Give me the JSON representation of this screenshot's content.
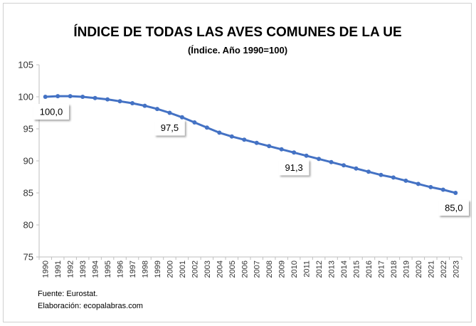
{
  "chart_data": {
    "type": "line",
    "title": "ÍNDICE DE TODAS LAS AVES COMUNES DE LA UE",
    "subtitle": "(Índice. Año 1990=100)",
    "xlabel": "",
    "ylabel": "",
    "ylim": [
      75,
      105
    ],
    "yticks": [
      "75",
      "80",
      "85",
      "90",
      "95",
      "100",
      "105"
    ],
    "grid": false,
    "legend": "none",
    "line_color": "#4472C4",
    "x": [
      "1990",
      "1991",
      "1992",
      "1993",
      "1994",
      "1995",
      "1996",
      "1997",
      "1998",
      "1999",
      "2000",
      "2001",
      "2002",
      "2003",
      "2004",
      "2005",
      "2006",
      "2007",
      "2008",
      "2009",
      "2010",
      "2011",
      "2012",
      "2013",
      "2014",
      "2015",
      "2016",
      "2017",
      "2018",
      "2019",
      "2020",
      "2021",
      "2022",
      "2023"
    ],
    "series": [
      {
        "values": [
          100.0,
          100.1,
          100.1,
          100.0,
          99.8,
          99.6,
          99.3,
          99.0,
          98.6,
          98.1,
          97.5,
          96.8,
          96.0,
          95.2,
          94.4,
          93.8,
          93.3,
          92.8,
          92.3,
          91.8,
          91.3,
          90.8,
          90.3,
          89.8,
          89.3,
          88.8,
          88.3,
          87.8,
          87.4,
          86.9,
          86.4,
          85.9,
          85.5,
          85.0
        ]
      }
    ],
    "data_labels": [
      {
        "index": 0,
        "text": "100,0"
      },
      {
        "index": 10,
        "text": "97,5"
      },
      {
        "index": 20,
        "text": "91,3"
      },
      {
        "index": 33,
        "text": "85,0"
      }
    ]
  },
  "footnotes": {
    "source": "Fuente: Eurostat.",
    "credit": "Elaboración: ecopalabras.com"
  }
}
